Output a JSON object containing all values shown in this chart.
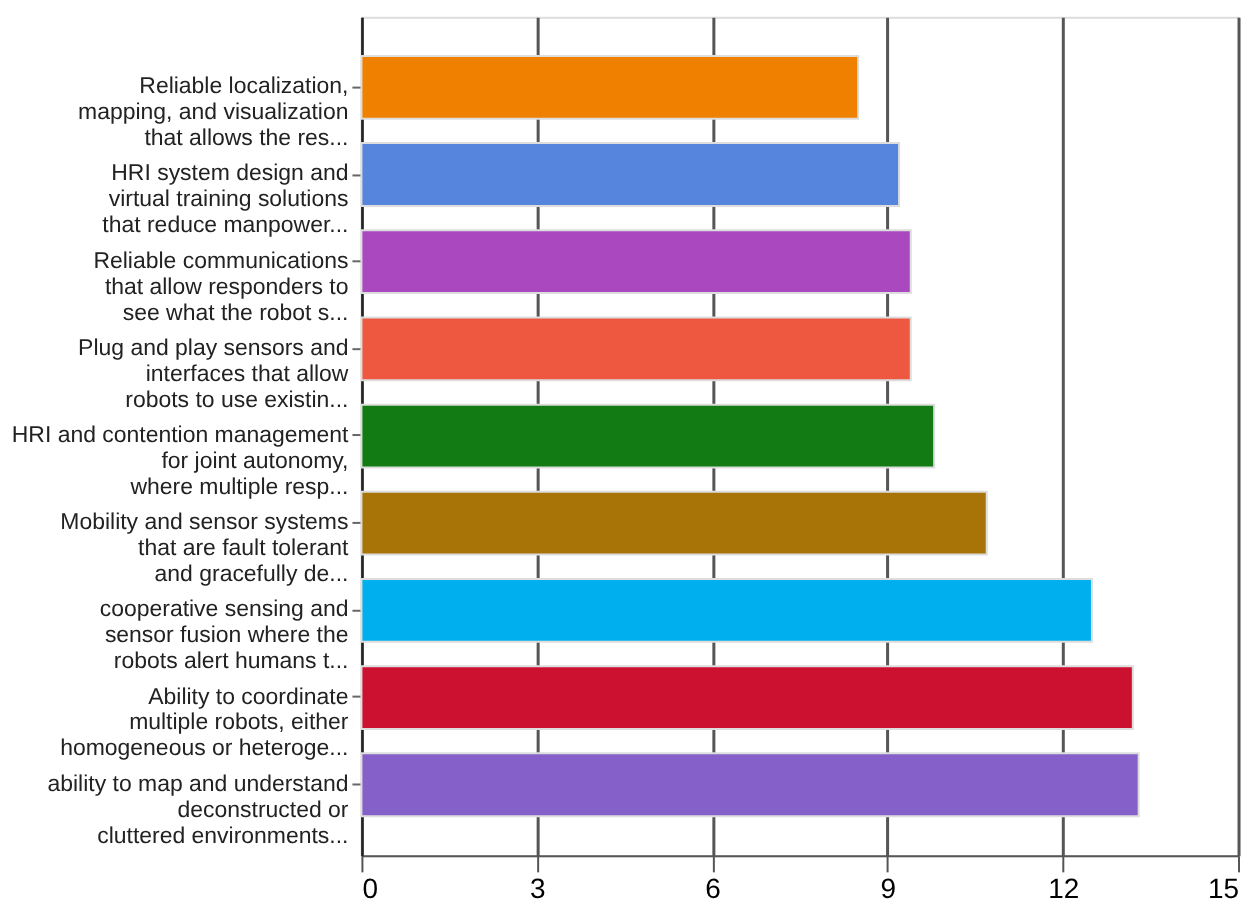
{
  "chart_data": {
    "type": "bar",
    "orientation": "horizontal",
    "categories": [
      "Reliable localization,\nmapping, and visualization\nthat allows the res...",
      "HRI system design and\nvirtual training solutions\nthat reduce manpower...",
      "Reliable communications\nthat allow responders to\nsee what the robot s...",
      "Plug and play sensors and\ninterfaces that allow\nrobots to use existin...",
      "HRI and contention management\nfor joint autonomy,\nwhere multiple resp...",
      "Mobility and sensor systems\nthat are fault tolerant\nand gracefully de...",
      "cooperative sensing and\nsensor fusion where the\nrobots alert humans t...",
      "Ability to coordinate\nmultiple robots, either\nhomogeneous or heteroge...",
      "ability to map and understand\ndeconstructed or\ncluttered environments..."
    ],
    "values": [
      8.5,
      9.2,
      9.4,
      9.4,
      9.8,
      10.7,
      12.5,
      13.2,
      13.3
    ],
    "colors": [
      "#f08000",
      "#5585dd",
      "#aa48c0",
      "#ef5840",
      "#127b14",
      "#a87408",
      "#00b0ee",
      "#cc1030",
      "#8460c8"
    ],
    "xlim": [
      0,
      15
    ],
    "xticks": [
      0,
      3,
      6,
      9,
      12,
      15
    ],
    "grid": "x"
  }
}
